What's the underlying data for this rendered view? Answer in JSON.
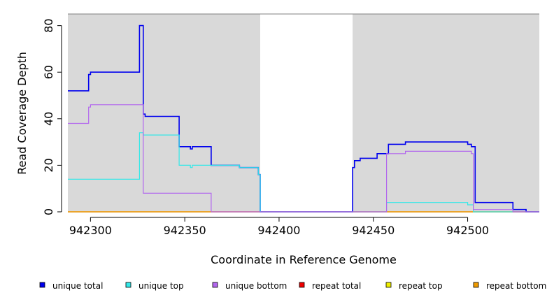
{
  "chart_data": {
    "type": "line",
    "title": "",
    "xlabel": "Coordinate in Reference Genome",
    "ylabel": "Read Coverage Depth",
    "xlim": [
      942288,
      942538
    ],
    "ylim": [
      0,
      85
    ],
    "x_ticks": [
      942300,
      942350,
      942400,
      942450,
      942500
    ],
    "x_tick_labels": [
      "942300",
      "942350",
      "942400",
      "942450",
      "942500"
    ],
    "y_ticks": [
      0,
      20,
      40,
      60,
      80
    ],
    "y_tick_labels": [
      "0",
      "20",
      "40",
      "60",
      "80"
    ],
    "grid": false,
    "background_color": "#d9d9d9",
    "uncovered_regions": [
      [
        942390,
        942439
      ]
    ],
    "legend_position": "bottom",
    "series": [
      {
        "name": "unique total",
        "color": "#0000ee",
        "x": [
          942288,
          942299,
          942299,
          942300,
          942300,
          942326,
          942326,
          942328,
          942328,
          942329,
          942329,
          942347,
          942347,
          942353,
          942353,
          942354,
          942354,
          942364,
          942364,
          942379,
          942379,
          942389,
          942389,
          942390,
          942390,
          942439,
          942439,
          942440,
          942440,
          942443,
          942443,
          942452,
          942452,
          942458,
          942458,
          942467,
          942467,
          942500,
          942500,
          942502,
          942502,
          942504,
          942504,
          942524,
          942524,
          942531,
          942531,
          942538
        ],
        "y": [
          52,
          52,
          59,
          59,
          60,
          60,
          80,
          80,
          42,
          42,
          41,
          41,
          28,
          28,
          27,
          27,
          28,
          28,
          20,
          20,
          19,
          19,
          16,
          16,
          0,
          0,
          19,
          19,
          22,
          22,
          23,
          23,
          25,
          25,
          29,
          29,
          30,
          30,
          29,
          29,
          28,
          28,
          4,
          4,
          1,
          1,
          0,
          0
        ]
      },
      {
        "name": "unique top",
        "color": "#33e8e8",
        "x": [
          942288,
          942326,
          942326,
          942328,
          942328,
          942329,
          942329,
          942347,
          942347,
          942353,
          942353,
          942354,
          942354,
          942364,
          942364,
          942379,
          942379,
          942389,
          942389,
          942390,
          942390,
          942457,
          942457,
          942500,
          942500,
          942503,
          942503,
          942538
        ],
        "y": [
          14,
          14,
          34,
          34,
          33,
          33,
          33,
          33,
          20,
          20,
          19,
          19,
          20,
          20,
          20,
          20,
          19,
          19,
          16,
          16,
          0,
          0,
          4,
          4,
          3,
          3,
          0,
          0
        ]
      },
      {
        "name": "unique bottom",
        "color": "#b266ee",
        "x": [
          942288,
          942299,
          942299,
          942300,
          942300,
          942328,
          942328,
          942364,
          942364,
          942457,
          942457,
          942467,
          942467,
          942502,
          942502,
          942503,
          942503,
          942524,
          942524,
          942538
        ],
        "y": [
          38,
          38,
          45,
          45,
          46,
          46,
          8,
          8,
          0,
          0,
          25,
          25,
          26,
          26,
          25,
          25,
          1,
          1,
          0,
          0
        ]
      },
      {
        "name": "repeat total",
        "color": "#ee0000",
        "x": [
          942288,
          942538
        ],
        "y": [
          0,
          0
        ]
      },
      {
        "name": "repeat top",
        "color": "#eeee00",
        "x": [
          942288,
          942538
        ],
        "y": [
          0,
          0
        ]
      },
      {
        "name": "repeat bottom",
        "color": "#ee9a00",
        "x": [
          942288,
          942538
        ],
        "y": [
          0,
          0
        ]
      }
    ]
  }
}
